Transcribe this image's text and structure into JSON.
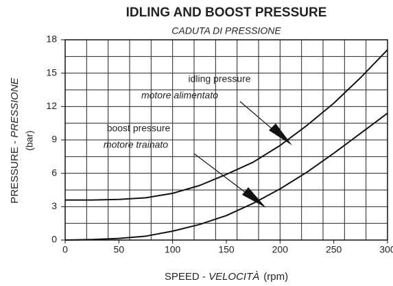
{
  "chart_data": {
    "type": "line",
    "title": "IDLING AND BOOST PRESSURE",
    "subtitle": "CADUTA DI PRESSIONE",
    "y_label": {
      "main": "PRESSURE - ",
      "italic": "PRESSIONE",
      "unit": "(bar)"
    },
    "x_label": {
      "main": "SPEED - ",
      "italic": "VELOCITÀ",
      "unit": "(rpm)"
    },
    "x": [
      0,
      25,
      50,
      75,
      100,
      125,
      150,
      175,
      200,
      225,
      250,
      275,
      300
    ],
    "series": [
      {
        "name": "idling pressure",
        "subname": "motore alimentato",
        "color": "#111111",
        "values": [
          3.6,
          3.6,
          3.65,
          3.8,
          4.2,
          4.9,
          5.9,
          7.0,
          8.5,
          10.3,
          12.3,
          14.6,
          17.1
        ]
      },
      {
        "name": "boost pressure",
        "subname": "motore trainato",
        "color": "#111111",
        "values": [
          0,
          0.05,
          0.15,
          0.35,
          0.8,
          1.4,
          2.2,
          3.3,
          4.6,
          6.1,
          7.8,
          9.6,
          11.4
        ]
      }
    ],
    "xlim": [
      0,
      300
    ],
    "xticks": [
      0,
      50,
      100,
      150,
      200,
      250,
      300
    ],
    "ylim": [
      0,
      18
    ],
    "yticks": [
      0,
      3,
      6,
      9,
      12,
      15,
      18
    ],
    "xgrid": [
      0,
      20,
      40,
      60,
      80,
      100,
      120,
      140,
      160,
      180,
      200,
      220,
      240,
      260,
      280,
      300
    ],
    "ygrid": [
      0,
      1.5,
      3,
      4.5,
      6,
      7.5,
      9,
      10.5,
      12,
      13.5,
      15,
      16.5,
      18
    ],
    "grid": true
  }
}
